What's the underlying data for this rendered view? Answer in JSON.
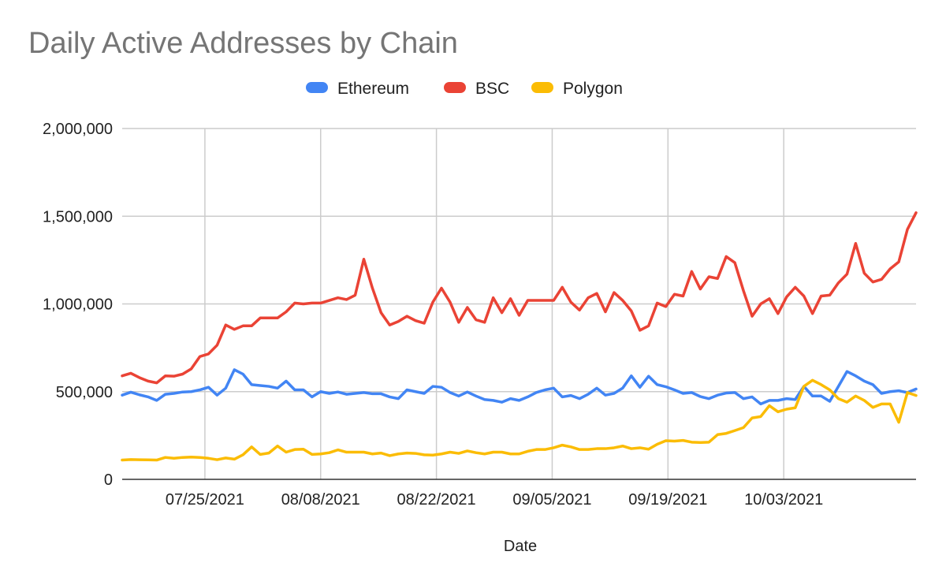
{
  "chart_data": {
    "type": "line",
    "title": "Daily Active Addresses by Chain",
    "xlabel": "Date",
    "ylabel": "",
    "ylim": [
      0,
      2000000
    ],
    "y_ticks": [
      0,
      500000,
      1000000,
      1500000,
      2000000
    ],
    "y_tick_labels": [
      "0",
      "500,000",
      "1,000,000",
      "1,500,000",
      "2,000,000"
    ],
    "x_start": "2021-07-15",
    "x_end": "2021-10-19",
    "x_ticks": [
      "2021-07-25",
      "2021-08-08",
      "2021-08-22",
      "2021-09-05",
      "2021-09-19",
      "2021-10-03"
    ],
    "x_tick_labels": [
      "07/25/2021",
      "08/08/2021",
      "08/22/2021",
      "09/05/2021",
      "09/19/2021",
      "10/03/2021"
    ],
    "grid": true,
    "legend_position": "top",
    "series": [
      {
        "name": "Ethereum",
        "color": "#4285F4",
        "values": [
          480000,
          497000,
          482000,
          470000,
          450000,
          485000,
          490000,
          498000,
          500000,
          510000,
          525000,
          480000,
          520000,
          625000,
          600000,
          540000,
          535000,
          530000,
          520000,
          560000,
          510000,
          510000,
          470000,
          500000,
          490000,
          498000,
          485000,
          490000,
          495000,
          488000,
          488000,
          470000,
          460000,
          510000,
          500000,
          490000,
          530000,
          525000,
          495000,
          475000,
          498000,
          475000,
          455000,
          450000,
          440000,
          460000,
          450000,
          470000,
          495000,
          510000,
          520000,
          470000,
          478000,
          460000,
          485000,
          520000,
          480000,
          490000,
          520000,
          590000,
          525000,
          588000,
          540000,
          528000,
          510000,
          490000,
          495000,
          472000,
          460000,
          480000,
          492000,
          495000,
          460000,
          470000,
          430000,
          450000,
          450000,
          460000,
          455000,
          530000,
          475000,
          475000,
          445000,
          530000,
          615000,
          590000,
          560000,
          540000,
          490000,
          500000,
          505000,
          495000,
          515000
        ]
      },
      {
        "name": "BSC",
        "color": "#EA4335",
        "values": [
          590000,
          605000,
          580000,
          560000,
          550000,
          590000,
          588000,
          600000,
          630000,
          700000,
          715000,
          765000,
          880000,
          855000,
          875000,
          875000,
          920000,
          920000,
          920000,
          955000,
          1005000,
          1000000,
          1005000,
          1005000,
          1020000,
          1035000,
          1025000,
          1050000,
          1255000,
          1090000,
          950000,
          880000,
          900000,
          930000,
          905000,
          890000,
          1010000,
          1090000,
          1010000,
          895000,
          980000,
          910000,
          895000,
          1035000,
          950000,
          1030000,
          935000,
          1020000,
          1020000,
          1020000,
          1020000,
          1095000,
          1010000,
          965000,
          1035000,
          1060000,
          955000,
          1065000,
          1020000,
          960000,
          850000,
          875000,
          1005000,
          985000,
          1055000,
          1045000,
          1185000,
          1085000,
          1155000,
          1145000,
          1270000,
          1235000,
          1075000,
          930000,
          1000000,
          1030000,
          945000,
          1040000,
          1095000,
          1045000,
          945000,
          1045000,
          1050000,
          1120000,
          1170000,
          1345000,
          1175000,
          1125000,
          1140000,
          1200000,
          1240000,
          1425000,
          1520000
        ]
      },
      {
        "name": "Polygon",
        "color": "#FBBC04",
        "values": [
          110000,
          113000,
          112000,
          111000,
          110000,
          125000,
          120000,
          125000,
          127000,
          125000,
          120000,
          112000,
          122000,
          115000,
          140000,
          185000,
          142000,
          150000,
          190000,
          155000,
          170000,
          172000,
          142000,
          145000,
          152000,
          168000,
          155000,
          155000,
          155000,
          145000,
          150000,
          135000,
          145000,
          150000,
          148000,
          140000,
          138000,
          145000,
          155000,
          148000,
          162000,
          152000,
          145000,
          155000,
          155000,
          145000,
          145000,
          160000,
          170000,
          170000,
          180000,
          195000,
          185000,
          170000,
          170000,
          175000,
          175000,
          180000,
          190000,
          175000,
          180000,
          172000,
          200000,
          220000,
          218000,
          222000,
          212000,
          210000,
          212000,
          255000,
          262000,
          278000,
          295000,
          350000,
          358000,
          420000,
          385000,
          400000,
          408000,
          530000,
          565000,
          540000,
          510000,
          460000,
          440000,
          475000,
          450000,
          410000,
          430000,
          430000,
          325000,
          495000,
          478000
        ]
      }
    ]
  }
}
